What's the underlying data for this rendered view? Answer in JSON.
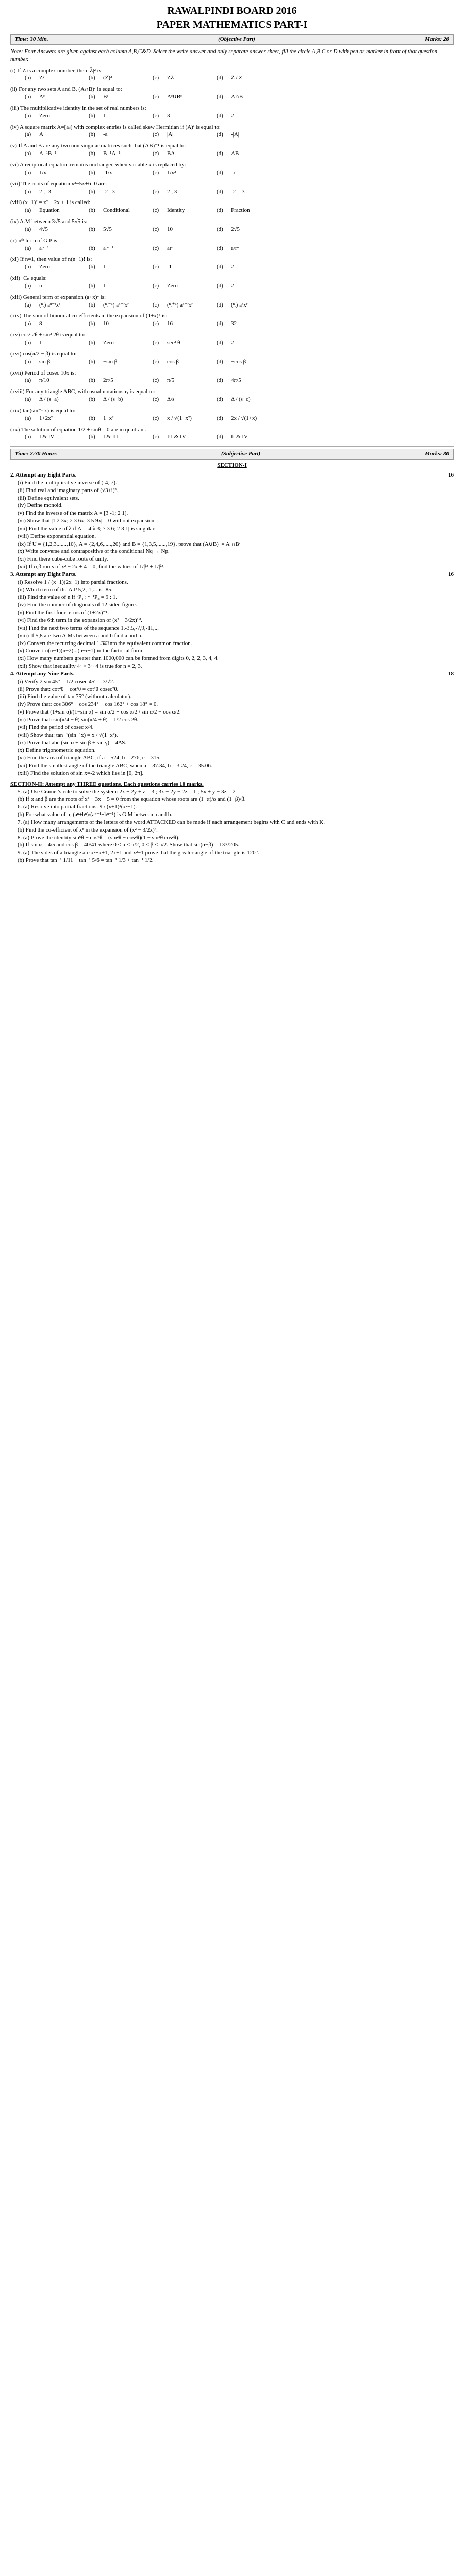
{
  "header": {
    "board": "RAWALPINDI BOARD 2016",
    "paper": "PAPER MATHEMATICS PART-I"
  },
  "obar": {
    "time": "Time: 30 Min.",
    "part": "(Objective Part)",
    "marks": "Marks: 20"
  },
  "note": "Note: Four Answers are given against each column A,B,C&D. Select the write answer and only separate answer sheet, fill the circle A,B,C or D with pen or marker in front of that question number.",
  "mcq": [
    {
      "n": "(i)",
      "t": "If Z is a complex number, then |Z̄|² is:",
      "o": [
        "Z²",
        "(Z̄)²",
        "ZZ̄",
        "Z̄ / Z"
      ]
    },
    {
      "n": "(ii)",
      "t": "For any two sets A and B, (A∩B)ᶜ is equal to:",
      "o": [
        "Aᶜ",
        "Bᶜ",
        "Aᶜ∪Bᶜ",
        "A∩B"
      ]
    },
    {
      "n": "(iii)",
      "t": "The multiplicative identity in the set of real numbers is:",
      "o": [
        "Zero",
        "1",
        "3",
        "2"
      ]
    },
    {
      "n": "(iv)",
      "t": "A square matrix A=[aᵢⱼ] with complex entries is called skew Hermitian if (Ā)ᵗ is equal to:",
      "o": [
        "A",
        "-a",
        "|A|",
        "-|A|"
      ]
    },
    {
      "n": "(v)",
      "t": "If A and B are any two non singular matrices such that (AB)⁻¹ is equal to:",
      "o": [
        "A⁻¹B⁻¹",
        "B⁻¹A⁻¹",
        "BA",
        "AB"
      ]
    },
    {
      "n": "(vi)",
      "t": "A reciprocal equation remains unchanged when variable x is replaced by:",
      "o": [
        "1/x",
        "-1/x",
        "1/x²",
        "-x"
      ]
    },
    {
      "n": "(vii)",
      "t": "The roots of equation x²−5x+6=0 are:",
      "o": [
        "2 , -3",
        "-2 , 3",
        "2 , 3",
        "-2 , -3"
      ]
    },
    {
      "n": "(viii)",
      "t": "(x−1)² = x² − 2x + 1 is called:",
      "o": [
        "Equation",
        "Conditional",
        "Identity",
        "Fraction"
      ]
    },
    {
      "n": "(ix)",
      "t": "A.M between 3√5 and 5√5 is:",
      "o": [
        "4√5",
        "5√5",
        "10",
        "2√5"
      ]
    },
    {
      "n": "(x)",
      "t": "nᵗʰ term of G.P is",
      "o": [
        "aᵣʳ⁻¹",
        "aᵣⁿ⁻¹",
        "arⁿ",
        "a/rⁿ"
      ]
    },
    {
      "n": "(xi)",
      "t": "If n=1, then value of n(n−1)! is:",
      "o": [
        "Zero",
        "1",
        "-1",
        "2"
      ]
    },
    {
      "n": "(xii)",
      "t": "ⁿCₙ equals:",
      "o": [
        "n",
        "1",
        "Zero",
        "2"
      ]
    },
    {
      "n": "(xiii)",
      "t": "General term of expansion (a+x)ⁿ is:",
      "o": [
        "(ⁿᵣ) aⁿ⁻ʳxʳ",
        "(ⁿᵣ⁻¹) aⁿ⁻ʳxʳ",
        "(ⁿᵣ⁺¹) aⁿ⁻ʳxʳ",
        "(ⁿᵣ) aⁿxʳ"
      ]
    },
    {
      "n": "(xiv)",
      "t": "The sum of binomial co-efficients in the expansion of (1+x)⁴ is:",
      "o": [
        "8",
        "10",
        "16",
        "32"
      ]
    },
    {
      "n": "(xv)",
      "t": "cos² 2θ + sin² 2θ is equal to:",
      "o": [
        "1",
        "Zero",
        "sec² θ",
        "2"
      ]
    },
    {
      "n": "(xvi)",
      "t": "cos(π/2 − β) is equal to:",
      "o": [
        "sin β",
        "−sin β",
        "cos β",
        "−cos β"
      ]
    },
    {
      "n": "(xvii)",
      "t": "Period of cosec 10x is:",
      "o": [
        "π/10",
        "2π/5",
        "π/5",
        "4π/5"
      ]
    },
    {
      "n": "(xviii)",
      "t": "For any triangle ABC, with usual notations r₁ is equal to:",
      "o": [
        "Δ / (s−a)",
        "Δ / (s−b)",
        "Δ/s",
        "Δ / (s−c)"
      ]
    },
    {
      "n": "(xix)",
      "t": "tan(sin⁻¹ x) is equal to:",
      "o": [
        "1+2x²",
        "1−x²",
        "x / √(1−x²)",
        "2x / √(1+x)"
      ]
    },
    {
      "n": "(xx)",
      "t": "The solution of equation 1/2 + sinθ = 0 are in quadrant.",
      "o": [
        "I & IV",
        "I & III",
        "III & IV",
        "II & IV"
      ]
    }
  ],
  "sbar": {
    "time": "Time: 2:30 Hours",
    "part": "(Subjective Part)",
    "marks": "Marks: 80"
  },
  "sec1": "SECTION-I",
  "q2": {
    "h": "2.  Attempt any Eight Parts.",
    "m": "16",
    "p": [
      "(i) Find the multiplicative inverse of (-4, 7).",
      "(ii) Find real and imaginary parts of (√3+i)³.",
      "(iii) Define equivalent sets.",
      "(iv) Define monoid.",
      "(v) Find the inverse of the matrix A = [3 -1; 2 1].",
      "(vi) Show that |1 2 3x; 2 3 6x; 3 5 9x| = 0 without expansion.",
      "(vii) Find the value of λ if A = |4 λ 3; 7 3 6; 2 3 1| is singular.",
      "(viii) Define exponential equation.",
      "(ix) If U = {1,2,3,......,10}, A = {2,4,6,.....,20} and B = {1,3,5,......,19}, prove that (A∪B)ᶜ = Aᶜ∩Bᶜ",
      "(x) Write converse and contrapositive of the conditional Nq → Np.",
      "(xi) Find there cube-cube roots of unity.",
      "(xii) If α,β roots of x² − 2x + 4 = 0, find the values of 1/β³ + 1/β³."
    ]
  },
  "q3": {
    "h": "3.  Attempt any Eight Parts.",
    "m": "16",
    "p": [
      "(i) Resolve 1 / (x−1)(2x−1) into partial fractions.",
      "(ii) Which term of the A.P 5,2,-1,... is -85.",
      "(iii) Find the value of n if ⁿP₄ : ⁿ⁻¹P₃ = 9 : 1.",
      "(iv) Find the number of diagonals of 12 sided figure.",
      "(v) Find the first four terms of (1+2x)⁻¹.",
      "(vi) Find the 6th term in the expansion of (x² − 3/2x)¹⁰.",
      "(vii) Find the next two terms of the sequence 1,-3,5,-7,9,-11,...",
      "(viii) If 5,8 are two A.Ms between a and b find a and b.",
      "(ix) Convert the recurring decimal 1.3̄4̄ into the equivalent common fraction.",
      "(x) Convert n(n−1)(n−2)...(n−r+1) in the factorial form.",
      "(xi) How many numbers greater than 1000,000 can be formed from digits 0, 2, 2, 3, 4, 4.",
      "(xii) Show that inequality 4ⁿ > 3ⁿ+4 is true for n = 2, 3."
    ]
  },
  "q4": {
    "h": "4.  Attempt any Nine Parts.",
    "m": "18",
    "p": [
      "(i) Verify 2 sin 45° = 1/2 cosec 45° = 3/√2.",
      "(ii) Prove that: cot⁴θ + cot²θ = cot²θ cosec²θ.",
      "(iii) Find the value of tan 75° (without calculator).",
      "(iv) Prove that: cos 306° + cos 234° + cos 162° + cos 18° = 0.",
      "(v) Prove that (1+sin α)/(1−sin α) = sin α/2 + cos α/2 / sin α/2 − cos α/2.",
      "(vi) Prove that: sin(π/4 − θ) sin(π/4 + θ) = 1/2 cos 2θ.",
      "(vii) Find the period of cosec x/4.",
      "(viii) Show that: tan⁻¹(sin⁻¹x) = x / √(1−x²).",
      "(ix) Prove that abc (sin α + sin β + sin γ) = 4ΔS.",
      "(x) Define trigonometric equation.",
      "(xi) Find the area of triangle ABC, if a = 524, b = 276, c = 315.",
      "(xii) Find the smallest angle of the triangle ABC, when a = 37.34, b = 3.24, c = 35.06.",
      "(xiii) Find the solution of sin x=-2 which lies in [0, 2π]."
    ]
  },
  "s2note": "SECTION-II: Attempt any THREE questions. Each questions carries 10 marks.",
  "q5": {
    "p": [
      "5. (a) Use Cramer's rule to solve the system: 2x + 2y + z = 3 ; 3x − 2y − 2z = 1 ; 5x + y − 3z = 2",
      "    (b) If α and β are the roots of x² − 3x + 5 = 0 from the equation whose roots are (1−α)/α and (1−β)/β."
    ]
  },
  "q6": {
    "p": [
      "6. (a) Resolve into partial fractions. 9 / (x+1)²(x²−1).",
      "    (b) For what value of n, (aⁿ+bⁿ)/(aⁿ⁻¹+bⁿ⁻¹) is G.M between a and b."
    ]
  },
  "q7": {
    "p": [
      "7. (a) How many arrangements of the letters of the word ATTACKED can be made if each arrangement begins with C and ends with K.",
      "    (b) Find the co-efficient of xⁿ in the expansion of (x² − 3/2x)ⁿ."
    ]
  },
  "q8": {
    "p": [
      "8. (a) Prove the identity sin⁶θ − cos⁶θ = (sin²θ − cos²θ)(1 − sin²θ cos²θ).",
      "    (b) If sin α = 4/5 and cos β = 40/41 where 0 < α < π/2, 0 < β < π/2. Show that sin(α−β) = 133/205."
    ]
  },
  "q9": {
    "p": [
      "9. (a) The sides of a triangle are x²+x+1, 2x+1 and x²−1 prove that the greater angle of the triangle is 120°.",
      "    (b) Prove that tan⁻¹ 1/11 + tan⁻¹ 5/6 = tan⁻¹ 1/3 + tan⁻¹ 1/2."
    ]
  }
}
